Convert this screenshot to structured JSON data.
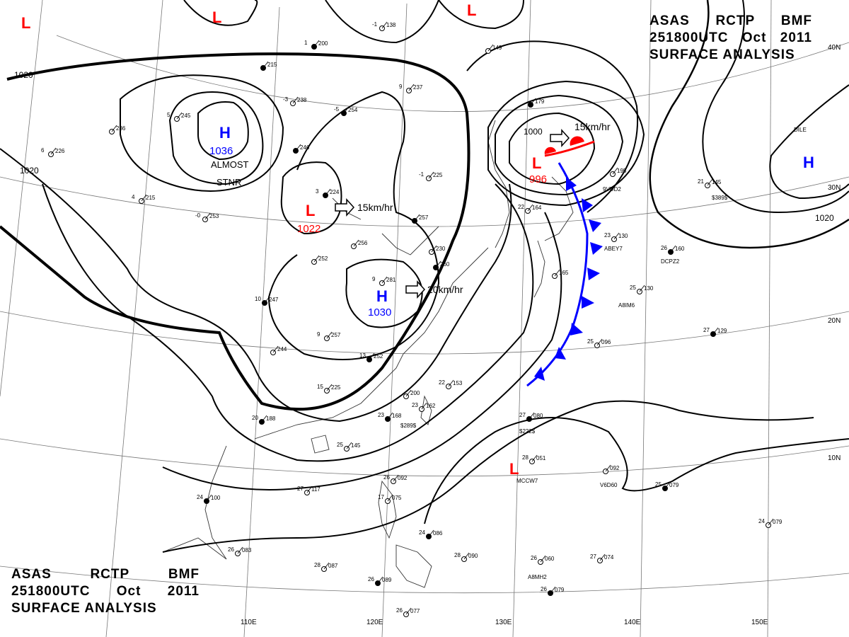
{
  "title": {
    "line1": [
      "ASAS",
      "RCTP",
      "BMF"
    ],
    "line2": [
      "251800UTC",
      "Oct",
      "2011"
    ],
    "line3": "SURFACE ANALYSIS"
  },
  "longitude_labels": [
    "110E",
    "120E",
    "130E",
    "140E",
    "150E"
  ],
  "latitude_labels": [
    "40N",
    "30N",
    "20N",
    "10N"
  ],
  "isobar_labels": [
    "1020",
    "1020",
    "1020",
    "1000"
  ],
  "colors": {
    "high": "#0000ff",
    "low": "#ff0000",
    "line": "#000000"
  },
  "highs": [
    {
      "letter": "H",
      "value": "1036",
      "note_1": "ALMOST",
      "note_2": "STNR"
    },
    {
      "letter": "H",
      "value": "1030",
      "motion": "20km/hr"
    },
    {
      "letter": "H",
      "value": ""
    }
  ],
  "lows": [
    {
      "letter": "L",
      "value": "1022",
      "motion": "15km/hr"
    },
    {
      "letter": "L",
      "value": "996",
      "motion": "15km/hr"
    },
    {
      "letter": "L",
      "value": ""
    },
    {
      "letter": "L",
      "value": ""
    },
    {
      "letter": "L",
      "value": ""
    },
    {
      "letter": "L",
      "value": ""
    }
  ],
  "stations": [
    {
      "p": "200",
      "t": "1"
    },
    {
      "p": "138",
      "t": "-1"
    },
    {
      "p": "149",
      "t": ""
    },
    {
      "p": "215",
      "t": ""
    },
    {
      "p": "237",
      "t": "9"
    },
    {
      "p": "238",
      "t": "-3"
    },
    {
      "p": "254",
      "t": "-5"
    },
    {
      "p": "245",
      "t": "5"
    },
    {
      "p": "236",
      "t": ""
    },
    {
      "p": "246",
      "t": ""
    },
    {
      "p": "226",
      "t": "6"
    },
    {
      "p": "225",
      "t": "-1"
    },
    {
      "p": "224",
      "t": "3"
    },
    {
      "p": "215",
      "t": "4"
    },
    {
      "p": "253",
      "t": "-0"
    },
    {
      "p": "257",
      "t": ""
    },
    {
      "p": "256",
      "t": ""
    },
    {
      "p": "230",
      "t": ""
    },
    {
      "p": "260",
      "t": ""
    },
    {
      "p": "252",
      "t": ""
    },
    {
      "p": "281",
      "t": "9"
    },
    {
      "p": "247",
      "t": "10"
    },
    {
      "p": "257",
      "t": "9"
    },
    {
      "p": "244",
      "t": ""
    },
    {
      "p": "252",
      "t": "13"
    },
    {
      "p": "225",
      "t": "15"
    },
    {
      "p": "200",
      "t": ""
    },
    {
      "p": "188",
      "t": "20"
    },
    {
      "p": "153",
      "t": "22"
    },
    {
      "p": "162",
      "t": "23"
    },
    {
      "p": "168",
      "t": "23"
    },
    {
      "p": "145",
      "t": "25"
    },
    {
      "p": "117",
      "t": "27"
    },
    {
      "p": "100",
      "t": "24"
    },
    {
      "p": "092",
      "t": "26"
    },
    {
      "p": "075",
      "t": "17"
    },
    {
      "p": "086",
      "t": "24"
    },
    {
      "p": "083",
      "t": "26"
    },
    {
      "p": "087",
      "t": "28"
    },
    {
      "p": "089",
      "t": "26"
    },
    {
      "p": "077",
      "t": "26"
    },
    {
      "p": "090",
      "t": "28"
    },
    {
      "p": "080",
      "t": "27"
    },
    {
      "p": "051",
      "t": "28"
    },
    {
      "p": "060",
      "t": "26"
    },
    {
      "p": "079",
      "t": "26"
    },
    {
      "p": "074",
      "t": "27"
    },
    {
      "p": "092",
      "t": ""
    },
    {
      "p": "079",
      "t": "25"
    },
    {
      "p": "079",
      "t": "24"
    },
    {
      "p": "096",
      "t": "25"
    },
    {
      "p": "129",
      "t": "27"
    },
    {
      "p": "130",
      "t": "25"
    },
    {
      "p": "130",
      "t": "23"
    },
    {
      "p": "160",
      "t": "26"
    },
    {
      "p": "145",
      "t": "21"
    },
    {
      "p": "195",
      "t": ""
    },
    {
      "p": "179",
      "t": ""
    },
    {
      "p": "164",
      "t": "22"
    },
    {
      "p": "165",
      "t": ""
    }
  ],
  "ship_calls": [
    "9VDD2",
    "$389$",
    "ABEY7",
    "DCPZ2",
    "A8IM6",
    "$222$",
    "MCCW7",
    "V6D60",
    "A8MH2",
    "$289$",
    "DILE"
  ]
}
